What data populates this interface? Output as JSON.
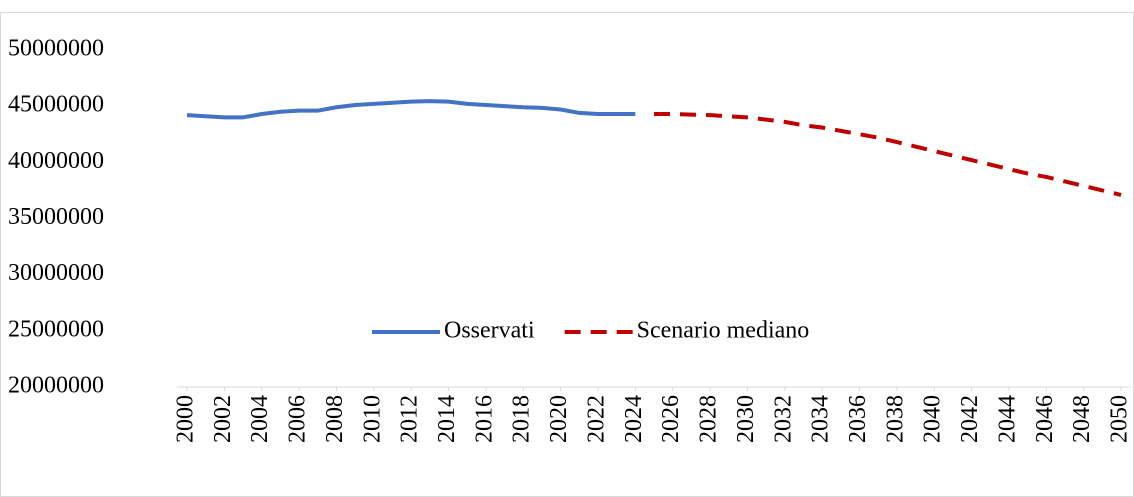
{
  "chart_data": {
    "type": "line",
    "x": [
      2000,
      2001,
      2002,
      2003,
      2004,
      2005,
      2006,
      2007,
      2008,
      2009,
      2010,
      2011,
      2012,
      2013,
      2014,
      2015,
      2016,
      2017,
      2018,
      2019,
      2020,
      2021,
      2022,
      2023,
      2024,
      2025,
      2026,
      2027,
      2028,
      2029,
      2030,
      2031,
      2032,
      2033,
      2034,
      2035,
      2036,
      2037,
      2038,
      2039,
      2040,
      2041,
      2042,
      2043,
      2044,
      2045,
      2046,
      2047,
      2048,
      2049,
      2050
    ],
    "xlim": [
      2000,
      2050
    ],
    "xticks": [
      2000,
      2002,
      2004,
      2006,
      2008,
      2010,
      2012,
      2014,
      2016,
      2018,
      2020,
      2022,
      2024,
      2026,
      2028,
      2030,
      2032,
      2034,
      2036,
      2038,
      2040,
      2042,
      2044,
      2046,
      2048,
      2050
    ],
    "ylim": [
      20000000,
      50000000
    ],
    "yticks": [
      20000000,
      25000000,
      30000000,
      35000000,
      40000000,
      45000000,
      50000000
    ],
    "grid": false,
    "legend": "bottom-center",
    "series": [
      {
        "name": "Osservati",
        "color": "#4472c4",
        "dash": false,
        "values": [
          44200000,
          44100000,
          44000000,
          44000000,
          44300000,
          44500000,
          44600000,
          44600000,
          44900000,
          45100000,
          45200000,
          45300000,
          45400000,
          45450000,
          45400000,
          45200000,
          45100000,
          45000000,
          44900000,
          44850000,
          44700000,
          44400000,
          44300000,
          44300000,
          44300000,
          null,
          null,
          null,
          null,
          null,
          null,
          null,
          null,
          null,
          null,
          null,
          null,
          null,
          null,
          null,
          null,
          null,
          null,
          null,
          null,
          null,
          null,
          null,
          null,
          null,
          null
        ]
      },
      {
        "name": "Scenario mediano",
        "color": "#c00000",
        "dash": true,
        "values": [
          null,
          null,
          null,
          null,
          null,
          null,
          null,
          null,
          null,
          null,
          null,
          null,
          null,
          null,
          null,
          null,
          null,
          null,
          null,
          null,
          null,
          null,
          null,
          null,
          null,
          44300000,
          44300000,
          44250000,
          44200000,
          44100000,
          44000000,
          43800000,
          43600000,
          43300000,
          43100000,
          42800000,
          42500000,
          42200000,
          41800000,
          41400000,
          41000000,
          40600000,
          40200000,
          39800000,
          39400000,
          39000000,
          38700000,
          38300000,
          37900000,
          37500000,
          37100000
        ]
      }
    ]
  }
}
